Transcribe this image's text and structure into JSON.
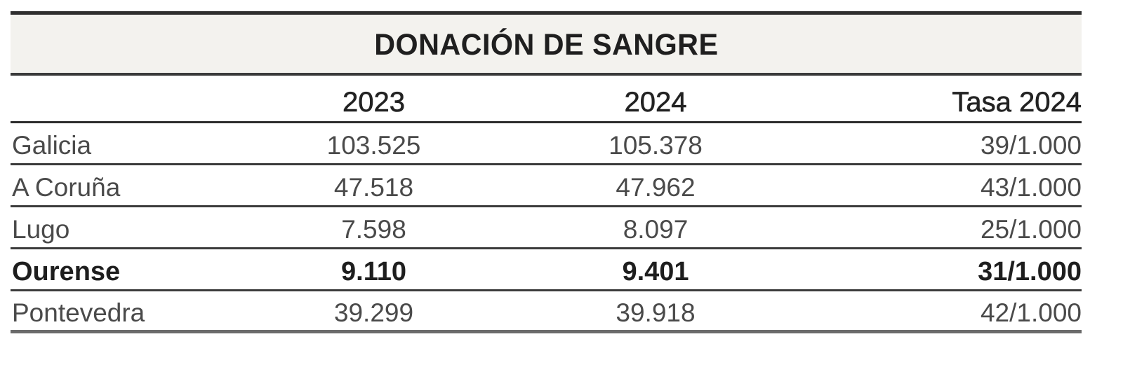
{
  "table": {
    "title": "DONACIÓN DE SANGRE",
    "columns": [
      "",
      "2023",
      "2024",
      "Tasa 2024"
    ],
    "rows": [
      {
        "name": "Galicia",
        "y2023": "103.525",
        "y2024": "105.378",
        "rate": "39/1.000",
        "highlight": false
      },
      {
        "name": "A Coruña",
        "y2023": "47.518",
        "y2024": "47.962",
        "rate": "43/1.000",
        "highlight": false
      },
      {
        "name": "Lugo",
        "y2023": "7.598",
        "y2024": "8.097",
        "rate": "25/1.000",
        "highlight": false
      },
      {
        "name": "Ourense",
        "y2023": "9.110",
        "y2024": "9.401",
        "rate": "31/1.000",
        "highlight": true
      },
      {
        "name": "Pontevedra",
        "y2023": "39.299",
        "y2024": "39.918",
        "rate": "42/1.000",
        "highlight": false
      }
    ]
  },
  "colors": {
    "title_band": "#f3f2ee",
    "rule": "#3b3b3b",
    "text": "#4a4a4a",
    "text_bold": "#1e1e1e"
  }
}
